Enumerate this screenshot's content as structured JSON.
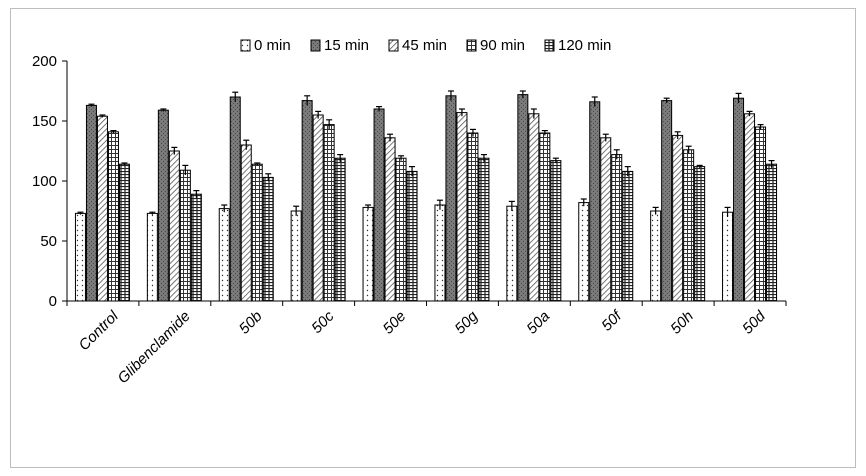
{
  "chart_data": {
    "type": "bar",
    "categories": [
      "Control",
      "Glibenclamide",
      "50b",
      "50c",
      "50e",
      "50g",
      "50a",
      "50f",
      "50h",
      "50d"
    ],
    "series": [
      {
        "name": "0 min",
        "values": [
          73,
          73,
          77,
          75,
          78,
          80,
          79,
          82,
          75,
          74
        ],
        "errors": [
          1,
          1,
          3,
          4,
          2,
          4,
          4,
          3,
          3,
          4
        ]
      },
      {
        "name": "15 min",
        "values": [
          163,
          159,
          170,
          167,
          160,
          171,
          172,
          166,
          167,
          169
        ],
        "errors": [
          1,
          1,
          4,
          4,
          2,
          4,
          3,
          4,
          2,
          4
        ]
      },
      {
        "name": "45 min",
        "values": [
          154,
          125,
          130,
          155,
          136,
          157,
          156,
          136,
          138,
          156
        ],
        "errors": [
          1,
          3,
          4,
          3,
          3,
          3,
          4,
          3,
          3,
          2
        ]
      },
      {
        "name": "90 min",
        "values": [
          141,
          109,
          114,
          147,
          119,
          140,
          140,
          122,
          126,
          145
        ],
        "errors": [
          1,
          4,
          1,
          4,
          2,
          3,
          2,
          4,
          3,
          2
        ]
      },
      {
        "name": "120 min",
        "values": [
          114,
          89,
          103,
          119,
          108,
          119,
          117,
          108,
          112,
          114
        ],
        "errors": [
          1,
          3,
          3,
          3,
          4,
          3,
          2,
          4,
          1,
          3
        ]
      }
    ],
    "ylim": [
      0,
      200
    ],
    "yticks": [
      0,
      50,
      100,
      150,
      200
    ],
    "grid": false,
    "legend": "top",
    "colors": {
      "0 min": "#ffffff",
      "15 min": "#7f7f7f",
      "45 min": "#ffffff",
      "90 min": "#ffffff",
      "120 min": "#ffffff"
    },
    "patterns": [
      "dots",
      "dark-gray",
      "diagonal-stripes",
      "grid",
      "grid"
    ]
  }
}
